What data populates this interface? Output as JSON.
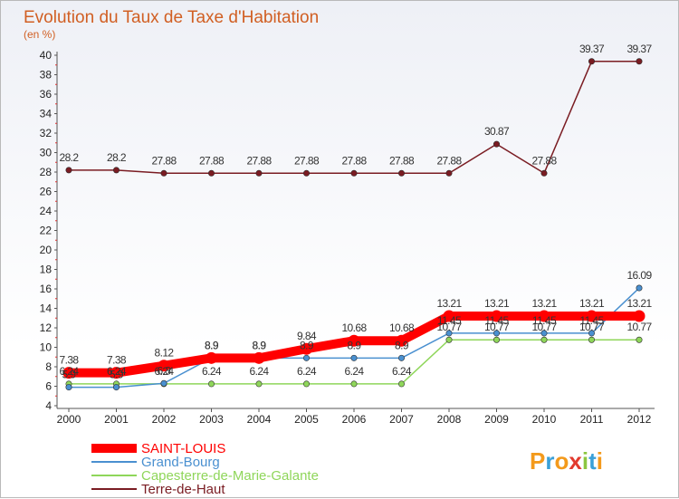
{
  "chart_data": {
    "type": "line",
    "title": "Evolution du Taux de Taxe d'Habitation",
    "subtitle": "(en %)",
    "x": [
      "2000",
      "2001",
      "2002",
      "2003",
      "2004",
      "2005",
      "2006",
      "2007",
      "2008",
      "2009",
      "2010",
      "2011",
      "2012"
    ],
    "ylim": [
      4,
      40
    ],
    "yticks": [
      4,
      6,
      8,
      10,
      12,
      14,
      16,
      18,
      20,
      22,
      24,
      26,
      28,
      30,
      32,
      34,
      36,
      38,
      40
    ],
    "grid": false,
    "legend_position": "bottom-left",
    "series": [
      {
        "name": "SAINT-LOUIS",
        "color": "#ff0000",
        "values": [
          7.38,
          7.38,
          8.12,
          8.9,
          8.9,
          9.84,
          10.68,
          10.68,
          13.21,
          13.21,
          13.21,
          13.21,
          13.21
        ],
        "labels": [
          "7.38",
          "7.38",
          "8.12",
          "8.9",
          "8.9",
          "9.84",
          "10.68",
          "10.68",
          "13.21",
          "13.21",
          "13.21",
          "13.21",
          "13.21"
        ]
      },
      {
        "name": "Grand-Bourg",
        "color": "#4a90d0",
        "values": [
          5.9,
          5.9,
          6.3,
          8.9,
          8.9,
          8.9,
          8.9,
          8.9,
          11.45,
          11.45,
          11.45,
          11.45,
          16.09
        ],
        "labels": [
          "5.9",
          "5.9",
          "6.3",
          "8.9",
          "8.9",
          "8.9",
          "8.9",
          "8.9",
          "11.45",
          "11.45",
          "11.45",
          "11.45",
          "16.09"
        ]
      },
      {
        "name": "Capesterre-de-Marie-Galante",
        "color": "#8fd65a",
        "values": [
          6.24,
          6.24,
          6.24,
          6.24,
          6.24,
          6.24,
          6.24,
          6.24,
          10.77,
          10.77,
          10.77,
          10.77,
          10.77
        ],
        "labels": [
          "6.24",
          "6.24",
          "6.24",
          "6.24",
          "6.24",
          "6.24",
          "6.24",
          "6.24",
          "10.77",
          "10.77",
          "10.77",
          "10.77",
          "10.77"
        ]
      },
      {
        "name": "Terre-de-Haut",
        "color": "#7a1c22",
        "values": [
          28.2,
          28.2,
          27.88,
          27.88,
          27.88,
          27.88,
          27.88,
          27.88,
          27.88,
          30.87,
          27.88,
          39.37,
          39.37
        ],
        "labels": [
          "28.2",
          "28.2",
          "27.88",
          "27.88",
          "27.88",
          "27.88",
          "27.88",
          "27.88",
          "27.88",
          "30.87",
          "27.88",
          "39.37",
          "39.37"
        ]
      }
    ]
  },
  "logo": {
    "letters": [
      "P",
      "r",
      "o",
      "x",
      "i",
      "t",
      "i"
    ],
    "colors": [
      "#f39a1c",
      "#3aa0d8",
      "#f39a1c",
      "#e23a2e",
      "#8cc63f",
      "#3aa0d8",
      "#f39a1c"
    ]
  }
}
